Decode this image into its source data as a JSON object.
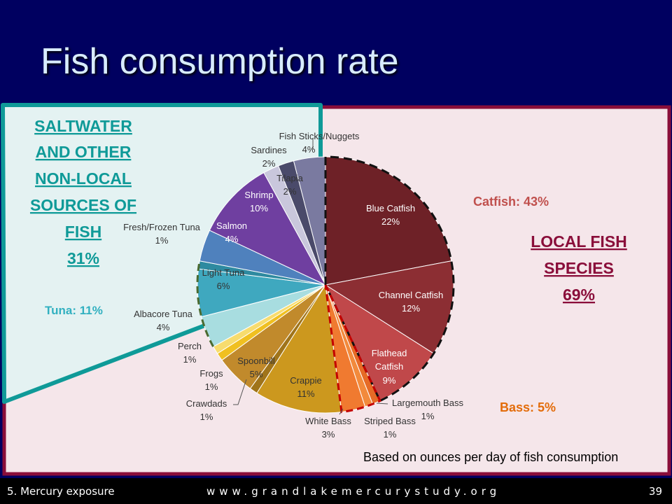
{
  "slide": {
    "title": "Fish consumption rate",
    "footer_left": "5.  Mercury exposure",
    "footer_center": "www.grandlakemercurystudy.org",
    "page_number": "39",
    "note": "Based on ounces per day of fish consumption"
  },
  "panels": {
    "saltwater": {
      "lines": [
        "SALTWATER",
        "AND OTHER",
        "NON-LOCAL",
        "SOURCES OF",
        "FISH",
        "31%"
      ],
      "color": "#0f9a98"
    },
    "local": {
      "lines": [
        "LOCAL FISH",
        "SPECIES",
        "69%"
      ],
      "color": "#8a0e3a"
    }
  },
  "group_labels": {
    "catfish": "Catfish: 43%",
    "bass": "Bass: 5%",
    "tuna": "Tuna: 11%"
  },
  "chart_data": {
    "type": "pie",
    "unit": "%",
    "slices": [
      {
        "name": "Blue Catfish",
        "value": 22,
        "color": "#6e2127"
      },
      {
        "name": "Channel Catfish",
        "value": 12,
        "color": "#8c2e33"
      },
      {
        "name": "Flathead Catfish",
        "value": 9,
        "color": "#c0484a"
      },
      {
        "name": "Largemouth Bass",
        "value": 1,
        "color": "#e66b26"
      },
      {
        "name": "Striped Bass",
        "value": 1,
        "color": "#f28a3c"
      },
      {
        "name": "White Bass",
        "value": 3,
        "color": "#f07a30"
      },
      {
        "name": "Crappie",
        "value": 11,
        "color": "#cc981e"
      },
      {
        "name": "Crawdads",
        "value": 1,
        "color": "#a0741a"
      },
      {
        "name": "Spoonbill",
        "value": 5,
        "color": "#c18a2c"
      },
      {
        "name": "Frogs",
        "value": 1,
        "color": "#f0c020"
      },
      {
        "name": "Perch",
        "value": 1,
        "color": "#f7dc6e"
      },
      {
        "name": "Albacore Tuna",
        "value": 4,
        "color": "#a8dde0"
      },
      {
        "name": "Light Tuna",
        "value": 6,
        "color": "#3fa8bf"
      },
      {
        "name": "Fresh/Frozen Tuna",
        "value": 1,
        "color": "#2e8aa0"
      },
      {
        "name": "Salmon",
        "value": 4,
        "color": "#4f81bd"
      },
      {
        "name": "Shrimp",
        "value": 10,
        "color": "#6f3fa0"
      },
      {
        "name": "Tilapia",
        "value": 2,
        "color": "#c9c7dc"
      },
      {
        "name": "Sardines",
        "value": 2,
        "color": "#4a4a6a"
      },
      {
        "name": "Fish Sticks/Nuggets",
        "value": 4,
        "color": "#7a7aa0"
      }
    ]
  }
}
